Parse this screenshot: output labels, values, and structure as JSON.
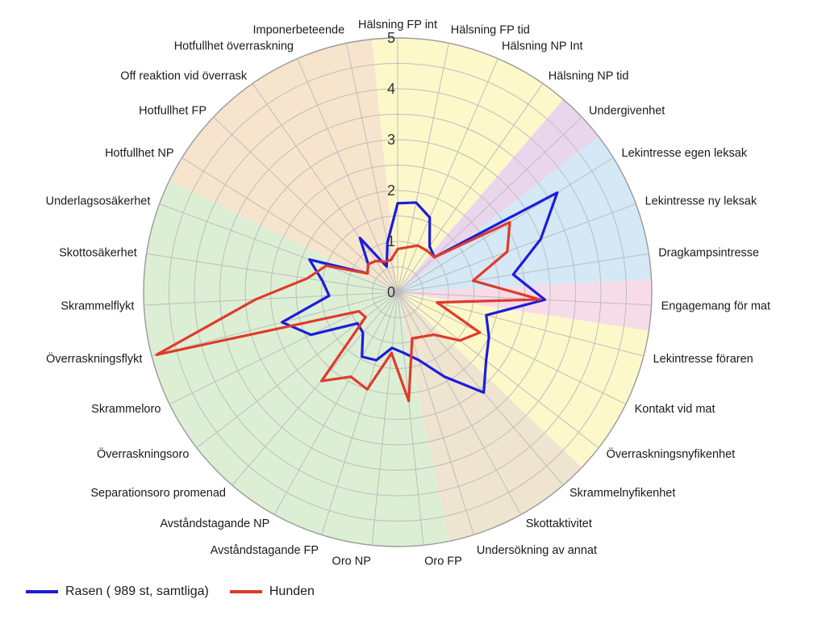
{
  "chart_data": {
    "type": "radar",
    "title": "",
    "rlim": [
      0,
      5
    ],
    "ticks": [
      "0",
      "1",
      "2",
      "3",
      "4",
      "5"
    ],
    "grid": true,
    "legend_position": "bottom-left",
    "categories": [
      "Hälsning FP int",
      "Hälsning FP tid",
      "Hälsning NP Int",
      "Hälsning NP tid",
      "Undergivenhet",
      "Lekintresse egen leksak",
      "Lekintresse ny leksak",
      "Dragkampsintresse",
      "Engagemang för mat",
      "Lekintresse föraren",
      "Kontakt vid mat",
      "Överraskningsnyfikenhet",
      "Skrammelnyfikenhet",
      "Skottaktivitet",
      "Undersökning av annat",
      "Oro FP",
      "Oro NP",
      "Avståndstagande FP",
      "Avståndstagande NP",
      "Separationsoro promenad",
      "Överraskningsoro",
      "Skrammeloro",
      "Överraskningsflykt",
      "Skrammelflykt",
      "Skottosäkerhet",
      "Underlagsosäkerhet",
      "Hotfullhet NP",
      "Hotfullhet FP",
      "Off reaktion vid överrask",
      "Hotfullhet överraskning",
      "Imponerbeteende"
    ],
    "sectors": [
      {
        "from": 0,
        "to": 3,
        "color": "#fdf8c9"
      },
      {
        "from": 4,
        "to": 4,
        "color": "#ead6ec"
      },
      {
        "from": 5,
        "to": 7,
        "color": "#d4e8f6"
      },
      {
        "from": 8,
        "to": 8,
        "color": "#f6dce8"
      },
      {
        "from": 9,
        "to": 11,
        "color": "#fdf8c9"
      },
      {
        "from": 12,
        "to": 14,
        "color": "#efe4cf"
      },
      {
        "from": 15,
        "to": 25,
        "color": "#dcefd5"
      },
      {
        "from": 26,
        "to": 30,
        "color": "#f7e4cd"
      }
    ],
    "series": [
      {
        "name": "Rasen ( 989 st, samtliga)",
        "color": "#1c1cdc",
        "values": [
          1.75,
          1.8,
          1.6,
          1.1,
          1.0,
          3.7,
          3.0,
          2.3,
          2.9,
          1.8,
          2.0,
          2.2,
          2.6,
          1.9,
          1.4,
          1.2,
          1.1,
          1.4,
          1.45,
          1.05,
          1.0,
          1.9,
          2.35,
          1.35,
          1.5,
          1.85,
          0.7,
          0.8,
          1.3,
          0.55,
          1.0
        ]
      },
      {
        "name": "Hunden",
        "color": "#e03a2a",
        "values": [
          0.85,
          0.9,
          1.0,
          1.0,
          1.0,
          2.6,
          2.3,
          1.5,
          2.8,
          0.8,
          1.8,
          1.55,
          1.1,
          1.0,
          0.95,
          2.15,
          1.2,
          2.0,
          1.9,
          2.3,
          0.8,
          0.85,
          4.9,
          2.8,
          1.8,
          1.5,
          0.7,
          0.8,
          0.75,
          0.65,
          0.65
        ]
      }
    ]
  }
}
